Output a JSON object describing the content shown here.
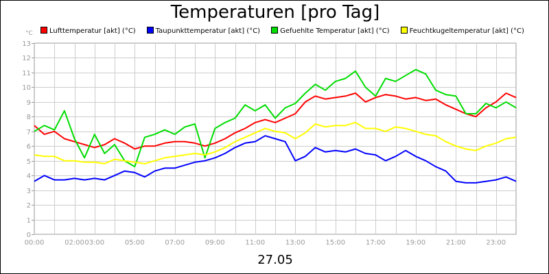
{
  "chart_data": {
    "type": "line",
    "title": "Temperaturen [pro Tag]",
    "date_label": "27.05",
    "unit_label": "°C",
    "ylim": [
      0,
      13
    ],
    "xlim": [
      0,
      24
    ],
    "yticks": [
      0,
      1,
      2,
      3,
      4,
      5,
      6,
      7,
      8,
      9,
      10,
      11,
      12,
      13
    ],
    "xtick_labels": [
      {
        "t": 0,
        "label": "00:00"
      },
      {
        "t": 2,
        "label": "02:00"
      },
      {
        "t": 3,
        "label": "03:00"
      },
      {
        "t": 5,
        "label": "05:00"
      },
      {
        "t": 7,
        "label": "07:00"
      },
      {
        "t": 9,
        "label": "09:00"
      },
      {
        "t": 11,
        "label": "11:00"
      },
      {
        "t": 13,
        "label": "13:00"
      },
      {
        "t": 15,
        "label": "15:00"
      },
      {
        "t": 17,
        "label": "17:00"
      },
      {
        "t": 19,
        "label": "19:00"
      },
      {
        "t": 21,
        "label": "21:00"
      },
      {
        "t": 23,
        "label": "23:00"
      }
    ],
    "grid": true,
    "legend_position": "top",
    "series": [
      {
        "name": "Lufttemperatur [akt] (°C)",
        "color": "#ff0000",
        "x": [
          0,
          0.5,
          1,
          1.5,
          2,
          2.5,
          3,
          3.5,
          4,
          4.5,
          5,
          5.5,
          6,
          6.5,
          7,
          7.5,
          8,
          8.5,
          9,
          9.5,
          10,
          10.5,
          11,
          11.5,
          12,
          12.5,
          13,
          13.5,
          14,
          14.5,
          15,
          15.5,
          16,
          16.5,
          17,
          17.5,
          18,
          18.5,
          19,
          19.5,
          20,
          20.5,
          21,
          21.5,
          22,
          22.5,
          23,
          23.5,
          24
        ],
        "y": [
          7.4,
          6.8,
          7.0,
          6.5,
          6.3,
          6.1,
          5.9,
          6.1,
          6.5,
          6.2,
          5.8,
          6.0,
          6.0,
          6.2,
          6.3,
          6.3,
          6.2,
          6.0,
          6.2,
          6.5,
          6.9,
          7.2,
          7.6,
          7.8,
          7.6,
          7.9,
          8.2,
          9.0,
          9.4,
          9.2,
          9.3,
          9.4,
          9.6,
          9.0,
          9.3,
          9.5,
          9.4,
          9.2,
          9.3,
          9.1,
          9.2,
          8.8,
          8.5,
          8.2,
          8.0,
          8.6,
          9.0,
          9.6,
          9.3
        ]
      },
      {
        "name": "Taupunkttemperatur [akt] (°C)",
        "color": "#0000ff",
        "x": [
          0,
          0.5,
          1,
          1.5,
          2,
          2.5,
          3,
          3.5,
          4,
          4.5,
          5,
          5.5,
          6,
          6.5,
          7,
          7.5,
          8,
          8.5,
          9,
          9.5,
          10,
          10.5,
          11,
          11.5,
          12,
          12.5,
          13,
          13.5,
          14,
          14.5,
          15,
          15.5,
          16,
          16.5,
          17,
          17.5,
          18,
          18.5,
          19,
          19.5,
          20,
          20.5,
          21,
          21.5,
          22,
          22.5,
          23,
          23.5,
          24
        ],
        "y": [
          3.6,
          4.0,
          3.7,
          3.7,
          3.8,
          3.7,
          3.8,
          3.7,
          4.0,
          4.3,
          4.2,
          3.9,
          4.3,
          4.5,
          4.5,
          4.7,
          4.9,
          5.0,
          5.2,
          5.5,
          5.9,
          6.2,
          6.3,
          6.7,
          6.5,
          6.3,
          5.0,
          5.3,
          5.9,
          5.6,
          5.7,
          5.6,
          5.8,
          5.5,
          5.4,
          5.0,
          5.3,
          5.7,
          5.3,
          5.0,
          4.6,
          4.3,
          3.6,
          3.5,
          3.5,
          3.6,
          3.7,
          3.9,
          3.6
        ]
      },
      {
        "name": "Gefuehlte Temperatur [akt] (°C)",
        "color": "#00dd00",
        "x": [
          0,
          0.5,
          1,
          1.5,
          2,
          2.5,
          3,
          3.5,
          4,
          4.5,
          5,
          5.5,
          6,
          6.5,
          7,
          7.5,
          8,
          8.5,
          9,
          9.5,
          10,
          10.5,
          11,
          11.5,
          12,
          12.5,
          13,
          13.5,
          14,
          14.5,
          15,
          15.5,
          16,
          16.5,
          17,
          17.5,
          18,
          18.5,
          19,
          19.5,
          20,
          20.5,
          21,
          21.5,
          22,
          22.5,
          23,
          23.5,
          24
        ],
        "y": [
          7.0,
          7.4,
          7.1,
          8.4,
          6.5,
          5.2,
          6.8,
          5.5,
          6.1,
          5.0,
          4.6,
          6.6,
          6.8,
          7.1,
          6.8,
          7.3,
          7.5,
          5.2,
          7.2,
          7.6,
          7.9,
          8.8,
          8.4,
          8.8,
          7.9,
          8.6,
          8.9,
          9.6,
          10.2,
          9.8,
          10.4,
          10.6,
          11.1,
          10.0,
          9.4,
          10.6,
          10.4,
          10.8,
          11.2,
          10.9,
          9.8,
          9.5,
          9.4,
          8.2,
          8.2,
          8.9,
          8.6,
          9.0,
          8.6
        ]
      },
      {
        "name": "Feuchtkugeltemperatur [akt] (°C)",
        "color": "#ffff00",
        "x": [
          0,
          0.5,
          1,
          1.5,
          2,
          2.5,
          3,
          3.5,
          4,
          4.5,
          5,
          5.5,
          6,
          6.5,
          7,
          7.5,
          8,
          8.5,
          9,
          9.5,
          10,
          10.5,
          11,
          11.5,
          12,
          12.5,
          13,
          13.5,
          14,
          14.5,
          15,
          15.5,
          16,
          16.5,
          17,
          17.5,
          18,
          18.5,
          19,
          19.5,
          20,
          20.5,
          21,
          21.5,
          22,
          22.5,
          23,
          23.5,
          24
        ],
        "y": [
          5.4,
          5.3,
          5.3,
          5.0,
          5.0,
          4.9,
          4.9,
          4.8,
          5.1,
          5.0,
          4.9,
          4.8,
          5.0,
          5.2,
          5.3,
          5.4,
          5.5,
          5.4,
          5.6,
          5.9,
          6.3,
          6.6,
          6.9,
          7.2,
          7.0,
          6.9,
          6.5,
          6.9,
          7.5,
          7.3,
          7.4,
          7.4,
          7.6,
          7.2,
          7.2,
          7.0,
          7.3,
          7.2,
          7.0,
          6.8,
          6.7,
          6.3,
          6.0,
          5.8,
          5.7,
          6.0,
          6.2,
          6.5,
          6.6
        ]
      }
    ]
  }
}
